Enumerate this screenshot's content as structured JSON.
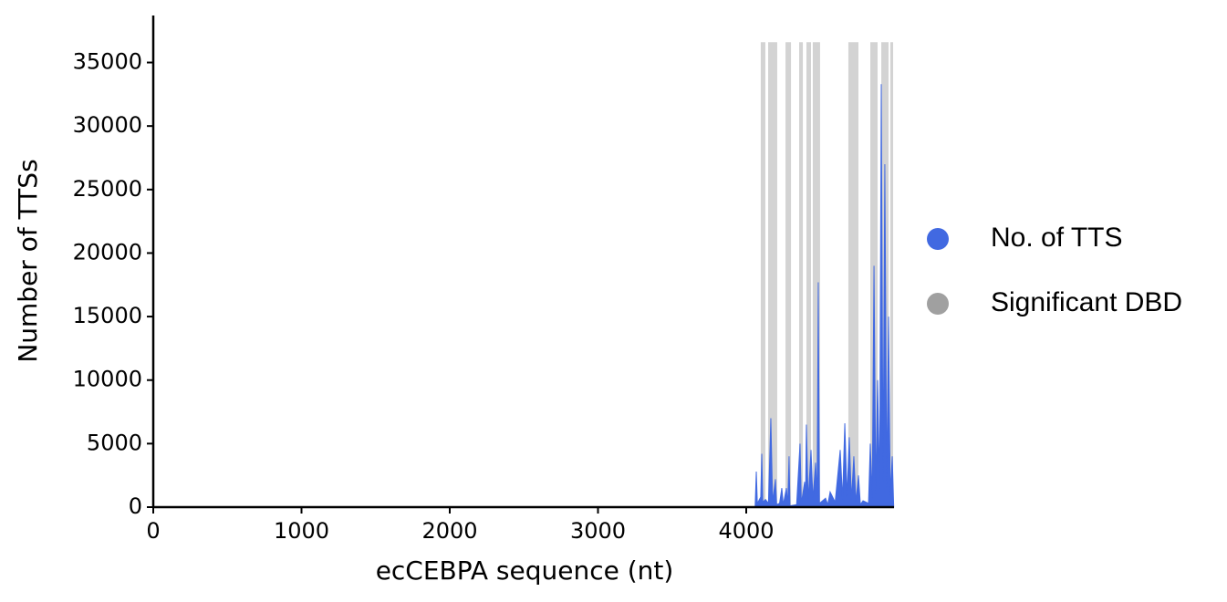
{
  "chart_data": {
    "type": "area",
    "x_label": "ecCEBPA sequence (nt)",
    "y_label": "Number of TTSs",
    "xlim": [
      0,
      4997
    ],
    "ylim": [
      0,
      38700
    ],
    "xticks": [
      0,
      1000,
      2000,
      3000,
      4000
    ],
    "yticks": [
      0,
      5000,
      10000,
      15000,
      20000,
      25000,
      30000,
      35000
    ],
    "series": [
      {
        "name": "No. of TTS",
        "color": "#4169e1",
        "x": [
          4060,
          4068,
          4075,
          4098,
          4105,
          4112,
          4130,
          4150,
          4166,
          4178,
          4197,
          4205,
          4225,
          4240,
          4250,
          4271,
          4280,
          4289,
          4295,
          4340,
          4363,
          4372,
          4394,
          4400,
          4406,
          4418,
          4437,
          4450,
          4468,
          4478,
          4486,
          4494,
          4535,
          4550,
          4566,
          4600,
          4634,
          4650,
          4665,
          4680,
          4695,
          4710,
          4726,
          4740,
          4757,
          4770,
          4788,
          4825,
          4837,
          4850,
          4862,
          4874,
          4886,
          4900,
          4911,
          4923,
          4935,
          4948,
          4960,
          4972,
          4985,
          4995
        ],
        "values": [
          0,
          2800,
          300,
          800,
          4200,
          400,
          600,
          300,
          7000,
          400,
          2200,
          200,
          300,
          1500,
          200,
          1500,
          200,
          4000,
          100,
          200,
          5000,
          300,
          2000,
          400,
          6500,
          500,
          4500,
          600,
          3500,
          800,
          17700,
          300,
          700,
          200,
          1200,
          400,
          4500,
          600,
          6600,
          800,
          5500,
          600,
          4000,
          400,
          2500,
          200,
          500,
          300,
          5000,
          700,
          19000,
          1000,
          10000,
          1500,
          33300,
          2000,
          27000,
          1500,
          15000,
          1000,
          4000,
          0
        ]
      },
      {
        "name": "Significant DBD",
        "color": "#d3d3d3",
        "marker_color": "#a0a0a0",
        "band_top": 36600,
        "ranges": [
          [
            4098,
            4129
          ],
          [
            4148,
            4209
          ],
          [
            4265,
            4302
          ],
          [
            4357,
            4382
          ],
          [
            4406,
            4437
          ],
          [
            4449,
            4498
          ],
          [
            4689,
            4757
          ],
          [
            4837,
            4886
          ],
          [
            4911,
            4960
          ],
          [
            4972,
            4991
          ]
        ]
      }
    ]
  }
}
